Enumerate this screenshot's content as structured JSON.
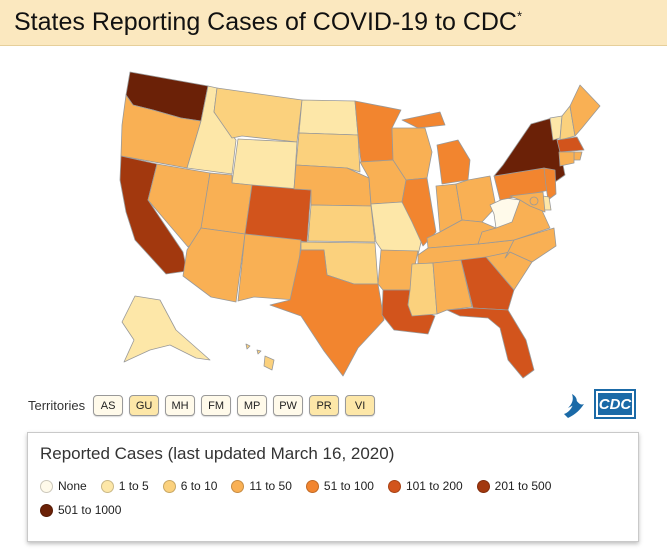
{
  "header": {
    "title": "States Reporting Cases of COVID-19 to CDC",
    "asterisk": "*"
  },
  "colors": {
    "none": "#fffaea",
    "c1_5": "#fde7a8",
    "c6_10": "#fbd17d",
    "c11_50": "#f9b054",
    "c51_100": "#f2852f",
    "c101_200": "#d2541c",
    "c201_500": "#a2380e",
    "c501_1000": "#6b2107"
  },
  "territories": {
    "label": "Territories",
    "items": [
      {
        "code": "AS",
        "bin": "none"
      },
      {
        "code": "GU",
        "bin": "c1_5"
      },
      {
        "code": "MH",
        "bin": "none"
      },
      {
        "code": "FM",
        "bin": "none"
      },
      {
        "code": "MP",
        "bin": "none"
      },
      {
        "code": "PW",
        "bin": "none"
      },
      {
        "code": "PR",
        "bin": "c1_5"
      },
      {
        "code": "VI",
        "bin": "c1_5"
      }
    ]
  },
  "logo": {
    "text": "CDC"
  },
  "legend": {
    "title": "Reported Cases (last updated March 16, 2020)",
    "items": [
      {
        "label": "None",
        "bin": "none"
      },
      {
        "label": "1 to 5",
        "bin": "c1_5"
      },
      {
        "label": "6 to 10",
        "bin": "c6_10"
      },
      {
        "label": "11 to 50",
        "bin": "c11_50"
      },
      {
        "label": "51 to 100",
        "bin": "c51_100"
      },
      {
        "label": "101 to 200",
        "bin": "c101_200"
      },
      {
        "label": "201 to 500",
        "bin": "c201_500"
      },
      {
        "label": "501 to 1000",
        "bin": "c501_1000"
      }
    ]
  },
  "states": [
    {
      "id": "WA",
      "bin": "c501_1000"
    },
    {
      "id": "OR",
      "bin": "c11_50"
    },
    {
      "id": "CA",
      "bin": "c201_500"
    },
    {
      "id": "ID",
      "bin": "c1_5"
    },
    {
      "id": "NV",
      "bin": "c11_50"
    },
    {
      "id": "MT",
      "bin": "c6_10"
    },
    {
      "id": "WY",
      "bin": "c1_5"
    },
    {
      "id": "UT",
      "bin": "c11_50"
    },
    {
      "id": "AZ",
      "bin": "c11_50"
    },
    {
      "id": "CO",
      "bin": "c101_200"
    },
    {
      "id": "NM",
      "bin": "c11_50"
    },
    {
      "id": "ND",
      "bin": "c1_5"
    },
    {
      "id": "SD",
      "bin": "c6_10"
    },
    {
      "id": "NE",
      "bin": "c11_50"
    },
    {
      "id": "KS",
      "bin": "c6_10"
    },
    {
      "id": "OK",
      "bin": "c6_10"
    },
    {
      "id": "TX",
      "bin": "c51_100"
    },
    {
      "id": "MN",
      "bin": "c51_100"
    },
    {
      "id": "IA",
      "bin": "c11_50"
    },
    {
      "id": "MO",
      "bin": "c1_5"
    },
    {
      "id": "AR",
      "bin": "c11_50"
    },
    {
      "id": "LA",
      "bin": "c101_200"
    },
    {
      "id": "WI",
      "bin": "c11_50"
    },
    {
      "id": "IL",
      "bin": "c51_100"
    },
    {
      "id": "MI",
      "bin": "c51_100"
    },
    {
      "id": "IN",
      "bin": "c11_50"
    },
    {
      "id": "OH",
      "bin": "c11_50"
    },
    {
      "id": "KY",
      "bin": "c11_50"
    },
    {
      "id": "TN",
      "bin": "c11_50"
    },
    {
      "id": "MS",
      "bin": "c6_10"
    },
    {
      "id": "AL",
      "bin": "c11_50"
    },
    {
      "id": "GA",
      "bin": "c101_200"
    },
    {
      "id": "FL",
      "bin": "c101_200"
    },
    {
      "id": "SC",
      "bin": "c11_50"
    },
    {
      "id": "NC",
      "bin": "c11_50"
    },
    {
      "id": "VA",
      "bin": "c11_50"
    },
    {
      "id": "WV",
      "bin": "none"
    },
    {
      "id": "PA",
      "bin": "c51_100"
    },
    {
      "id": "NY",
      "bin": "c501_1000"
    },
    {
      "id": "VT",
      "bin": "c1_5"
    },
    {
      "id": "NH",
      "bin": "c6_10"
    },
    {
      "id": "ME",
      "bin": "c11_50"
    },
    {
      "id": "MA",
      "bin": "c101_200"
    },
    {
      "id": "RI",
      "bin": "c11_50"
    },
    {
      "id": "CT",
      "bin": "c11_50"
    },
    {
      "id": "NJ",
      "bin": "c51_100"
    },
    {
      "id": "DE",
      "bin": "c1_5"
    },
    {
      "id": "MD",
      "bin": "c11_50"
    },
    {
      "id": "DC",
      "bin": "c11_50"
    },
    {
      "id": "AK",
      "bin": "c1_5"
    },
    {
      "id": "HI",
      "bin": "c6_10"
    }
  ]
}
